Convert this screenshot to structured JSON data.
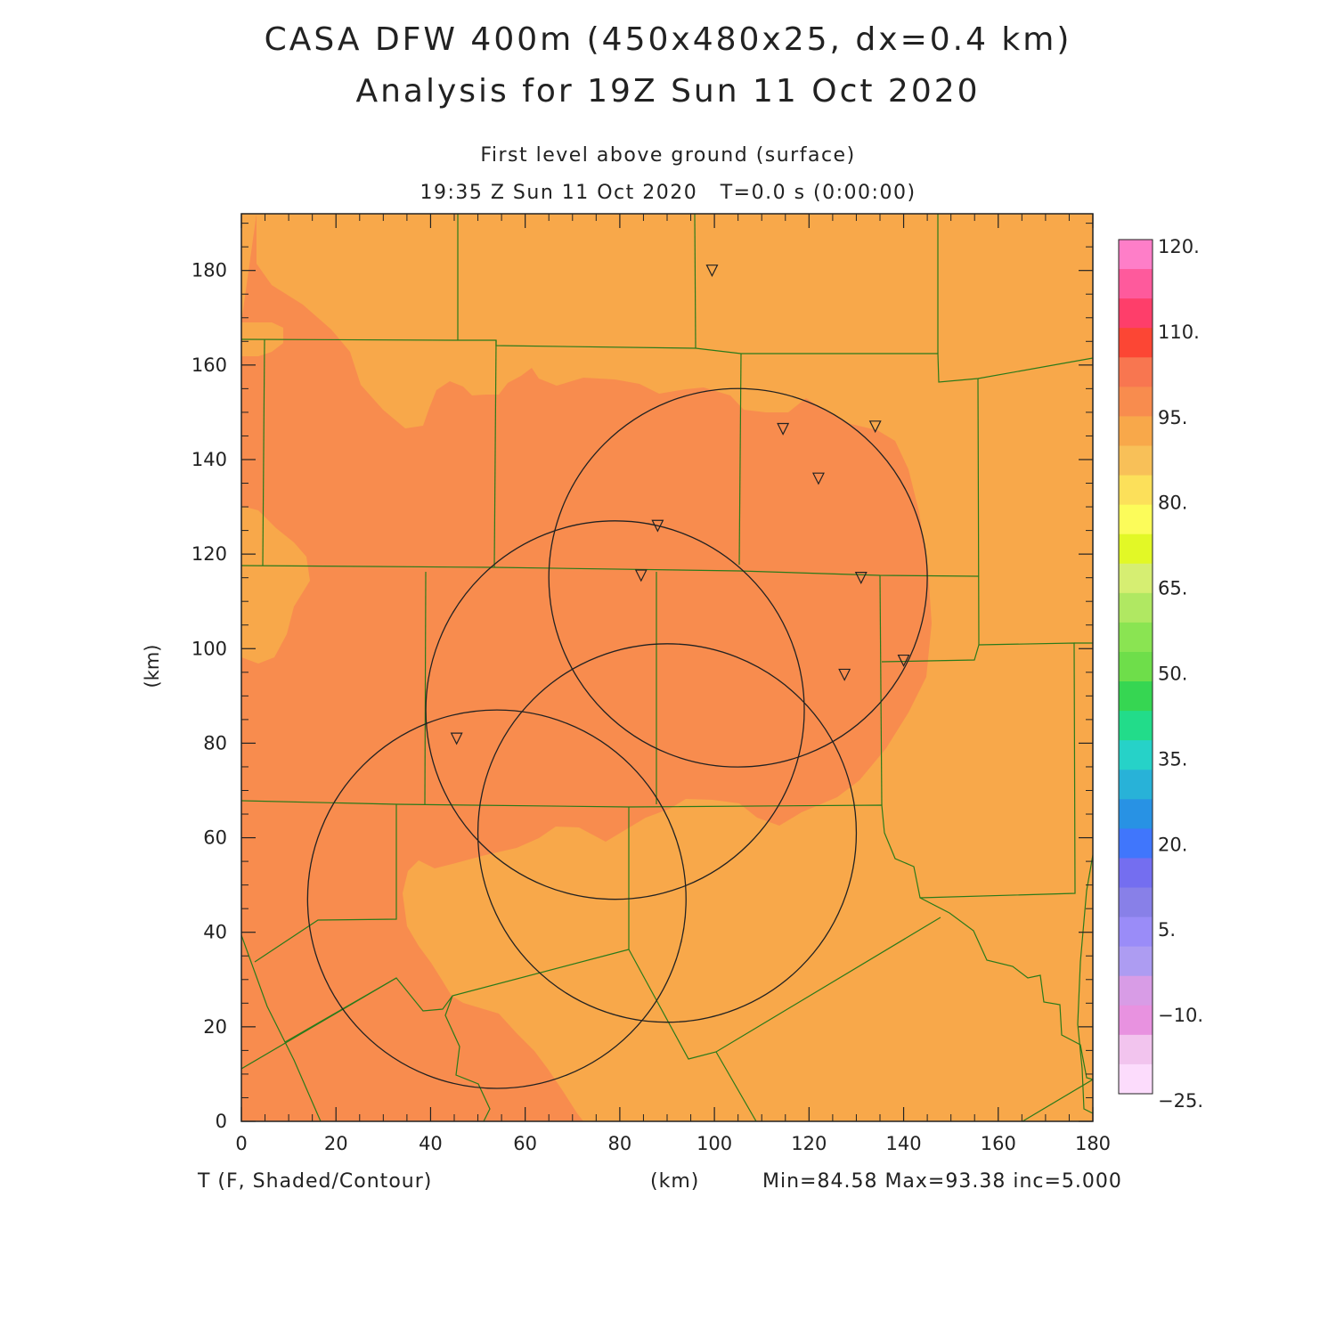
{
  "header": {
    "title_line1": "CASA DFW 400m (450x480x25, dx=0.4 km)",
    "title_line2": "Analysis for 19Z Sun 11 Oct 2020",
    "level": "First level above ground (surface)",
    "valid_time": "19:35 Z Sun 11 Oct 2020   T=0.0 s (0:00:00)"
  },
  "axes": {
    "x_ticks": [
      "0",
      "20",
      "40",
      "60",
      "80",
      "100",
      "120",
      "140",
      "160",
      "180"
    ],
    "y_ticks": [
      "0",
      "20",
      "40",
      "60",
      "80",
      "100",
      "120",
      "140",
      "160",
      "180"
    ],
    "y_label": "(km)",
    "x_label": "(km)",
    "x_range": [
      0,
      180
    ],
    "y_range": [
      0,
      192
    ]
  },
  "footer": {
    "field": "T (F, Shaded/Contour)",
    "stats": "Min=84.58 Max=93.38 inc=5.000"
  },
  "colorbar": {
    "labels": [
      "120.",
      "110.",
      "95.",
      "80.",
      "65.",
      "50.",
      "35.",
      "20.",
      "5.",
      "−10.",
      "−25."
    ],
    "colors": [
      "#fe7ec8",
      "#fe5a9c",
      "#fe3e6a",
      "#fc4634",
      "#f87650",
      "#f88c4e",
      "#f8a84a",
      "#f8c058",
      "#fce05a",
      "#fcfc5a",
      "#e2f826",
      "#d6ee72",
      "#b0e862",
      "#8ae452",
      "#6ede4a",
      "#36d652",
      "#22dc8a",
      "#26d2c8",
      "#28b2d8",
      "#2892e4",
      "#4076fc",
      "#746ef0",
      "#8880e8",
      "#9a8cf8",
      "#ad9cf2",
      "#d89ce6",
      "#e892e0",
      "#f2c4ee",
      "#fcdcfc"
    ]
  },
  "map": {
    "colors": {
      "cool": "#f8a84a",
      "warm": "#f88c4e",
      "county_line": "#2a7a1a",
      "range_ring": "#222222"
    },
    "radar_sites": [
      [
        99.5,
        180
      ],
      [
        114.5,
        146.5
      ],
      [
        134,
        147
      ],
      [
        122,
        136
      ],
      [
        88,
        126
      ],
      [
        84.5,
        115.5
      ],
      [
        131,
        115
      ],
      [
        140,
        97.5
      ],
      [
        127.5,
        94.5
      ],
      [
        45.5,
        81
      ]
    ],
    "range_rings": [
      {
        "cx": 105,
        "cy": 115,
        "r": 40
      },
      {
        "cx": 79,
        "cy": 87,
        "r": 40
      },
      {
        "cx": 90,
        "cy": 61,
        "r": 40
      },
      {
        "cx": 54,
        "cy": 47,
        "r": 40
      }
    ]
  }
}
